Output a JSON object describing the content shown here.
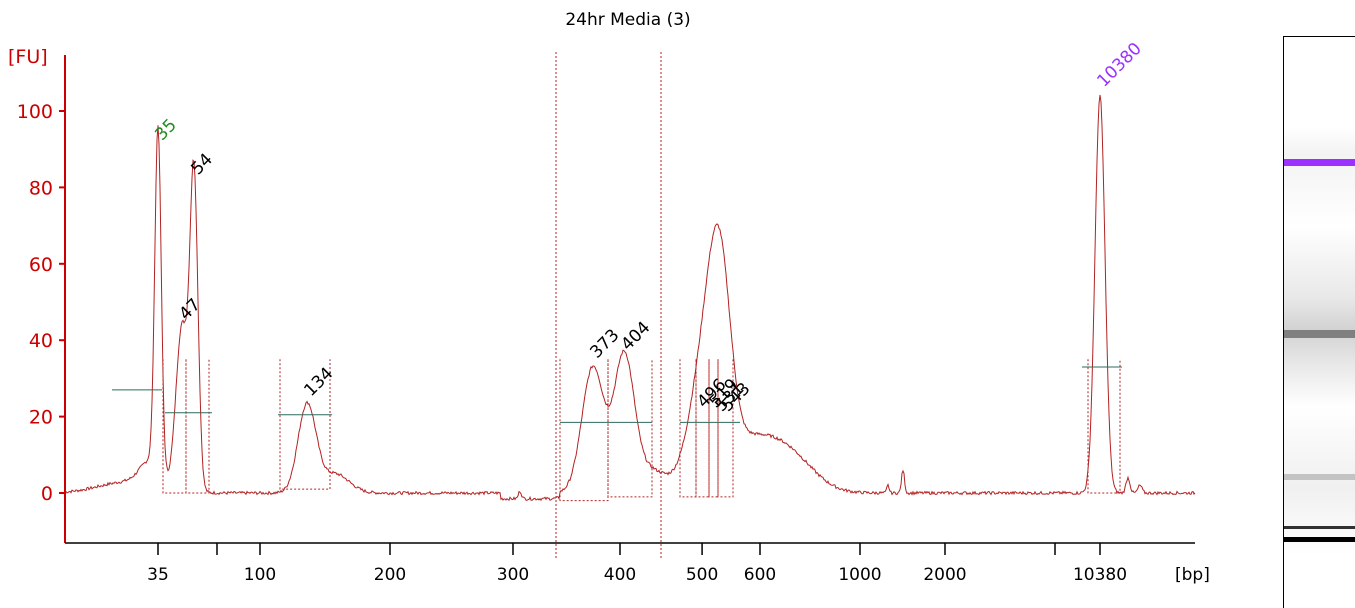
{
  "chart_data": {
    "type": "line",
    "title": "24hr Media (3)",
    "ylabel": "[FU]",
    "xlabel": "[bp]",
    "ylim": [
      -12,
      113
    ],
    "y_ticks": [
      0,
      20,
      40,
      60,
      80,
      100
    ],
    "x_ticks": [
      "35",
      "100",
      "200",
      "300",
      "400",
      "500",
      "600",
      "1000",
      "2000",
      "10380"
    ],
    "scale": "migration (non-linear bp)",
    "peaks": [
      {
        "label": "35",
        "bp": 35,
        "fu": 90,
        "color": "#228b22"
      },
      {
        "label": "47",
        "bp": 47,
        "fu": 43,
        "color": "#000000"
      },
      {
        "label": "54",
        "bp": 54,
        "fu": 81,
        "color": "#000000"
      },
      {
        "label": "134",
        "bp": 134,
        "fu": 23,
        "color": "#000000"
      },
      {
        "label": "373",
        "bp": 373,
        "fu": 33,
        "color": "#000000"
      },
      {
        "label": "404",
        "bp": 404,
        "fu": 35,
        "color": "#000000"
      },
      {
        "label": "496",
        "bp": 496,
        "fu": 20,
        "color": "#000000"
      },
      {
        "label": "519",
        "bp": 519,
        "fu": 20,
        "color": "#000000"
      },
      {
        "label": "531",
        "bp": 531,
        "fu": 19,
        "color": "#000000"
      },
      {
        "label": "543",
        "bp": 543,
        "fu": 19,
        "color": "#000000"
      },
      {
        "label": "10380",
        "bp": 10380,
        "fu": 104,
        "color": "#9b30ff"
      }
    ]
  },
  "colors": {
    "axis": "#cc0000",
    "trace": "#b22222",
    "baseline": "#2e6b5e",
    "lower_marker": "#228b22",
    "upper_marker": "#9b30ff"
  },
  "gel": {
    "bands": [
      {
        "fu": 104,
        "color": "#9b30ff"
      },
      {
        "fu": 35,
        "color": "#555555"
      },
      {
        "fu": 20,
        "color": "#999999"
      },
      {
        "fu": 90,
        "color": "#000000"
      },
      {
        "fu": 81,
        "color": "#333333"
      }
    ]
  }
}
